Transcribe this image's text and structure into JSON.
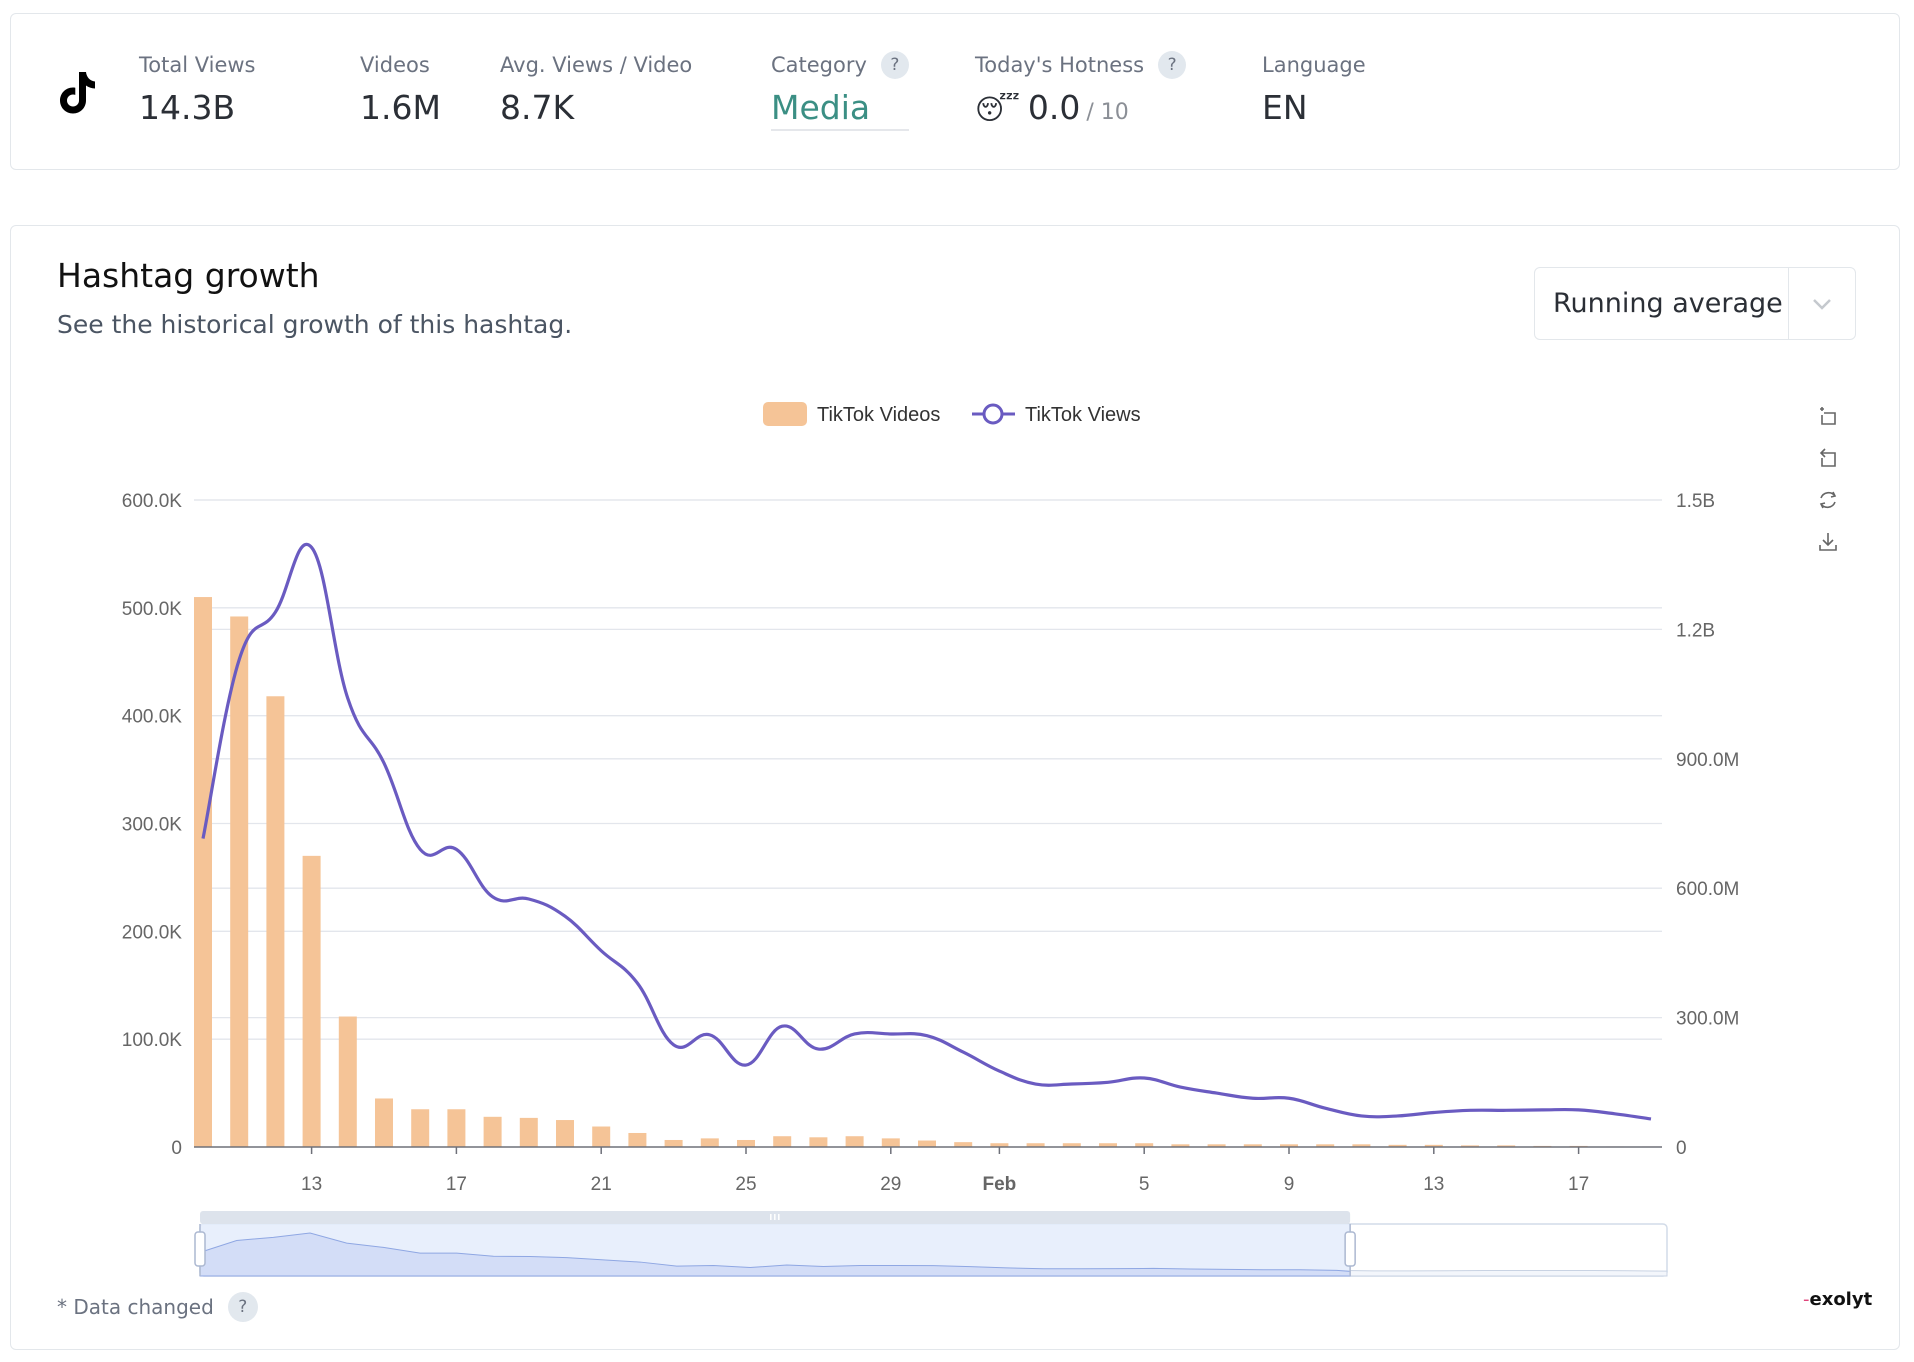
{
  "stats": {
    "platform_icon": "tiktok-logo-icon",
    "items": [
      {
        "label": "Total Views",
        "value": "14.3B"
      },
      {
        "label": "Videos",
        "value": "1.6M"
      },
      {
        "label": "Avg. Views / Video",
        "value": "8.7K"
      },
      {
        "label": "Category",
        "value": "Media",
        "help": "?"
      },
      {
        "label": "Today's Hotness",
        "value": "0.0",
        "suffix": "/ 10",
        "emoji": "😴",
        "help": "?"
      },
      {
        "label": "Language",
        "value": "EN"
      }
    ]
  },
  "chart_card": {
    "title": "Hashtag growth",
    "subtitle": "See the historical growth of this hashtag.",
    "select": {
      "value": "Running average",
      "icon": "chevron-down-icon"
    },
    "toolbox": [
      "area-zoom-icon",
      "zoom-back-icon",
      "restore-icon",
      "save-image-icon"
    ],
    "footer_note": "* Data changed",
    "footer_help": "?",
    "brand": "exolyt"
  },
  "colors": {
    "videos_bar": "#f5c497",
    "views_line": "#6a5bc1",
    "category_accent": "#3b8f84",
    "slider_fill": "#e4ecfb",
    "slider_area": "#d3ddf7"
  },
  "chart_data": {
    "type": "bar+line",
    "legend": [
      "TikTok Videos",
      "TikTok Views"
    ],
    "legend_position": "top-center",
    "grid": true,
    "x": [
      "Jan 10",
      "Jan 11",
      "Jan 12",
      "Jan 13",
      "Jan 14",
      "Jan 15",
      "Jan 16",
      "Jan 17",
      "Jan 18",
      "Jan 19",
      "Jan 20",
      "Jan 21",
      "Jan 22",
      "Jan 23",
      "Jan 24",
      "Jan 25",
      "Jan 26",
      "Jan 27",
      "Jan 28",
      "Jan 29",
      "Jan 30",
      "Jan 31",
      "Feb 1",
      "Feb 2",
      "Feb 3",
      "Feb 4",
      "Feb 5",
      "Feb 6",
      "Feb 7",
      "Feb 8",
      "Feb 9",
      "Feb 10",
      "Feb 11",
      "Feb 12",
      "Feb 13",
      "Feb 14",
      "Feb 15",
      "Feb 16",
      "Feb 17",
      "Feb 18",
      "Feb 19"
    ],
    "x_tick_labels": [
      {
        "index": 3,
        "label": "13"
      },
      {
        "index": 7,
        "label": "17"
      },
      {
        "index": 11,
        "label": "21"
      },
      {
        "index": 15,
        "label": "25"
      },
      {
        "index": 19,
        "label": "29"
      },
      {
        "index": 22,
        "label": "Feb",
        "bold": true
      },
      {
        "index": 26,
        "label": "5"
      },
      {
        "index": 30,
        "label": "9"
      },
      {
        "index": 34,
        "label": "13"
      },
      {
        "index": 38,
        "label": "17"
      }
    ],
    "series": [
      {
        "name": "TikTok Videos",
        "type": "bar",
        "axis": "left",
        "values": [
          510000,
          492000,
          418000,
          270000,
          121000,
          45000,
          35000,
          35000,
          28000,
          27000,
          25000,
          19000,
          13000,
          6500,
          8000,
          6500,
          10000,
          9000,
          10000,
          8000,
          6000,
          4500,
          3500,
          3500,
          3500,
          3500,
          3500,
          2500,
          2500,
          2500,
          2500,
          2500,
          2500,
          2000,
          2000,
          1500,
          1500,
          1000,
          1000,
          500,
          500
        ]
      },
      {
        "name": "TikTok Views",
        "type": "line",
        "axis": "right",
        "smooth": true,
        "values": [
          715000000,
          1130000000,
          1240000000,
          1390000000,
          1040000000,
          890000000,
          690000000,
          690000000,
          580000000,
          575000000,
          535000000,
          455000000,
          380000000,
          237000000,
          260000000,
          190000000,
          280000000,
          227000000,
          262000000,
          262000000,
          258000000,
          220000000,
          176000000,
          146000000,
          146000000,
          150000000,
          160000000,
          139000000,
          125000000,
          113000000,
          113000000,
          90000000,
          72000000,
          72000000,
          80000000,
          85000000,
          85000000,
          86000000,
          86000000,
          77000000,
          65000000
        ]
      }
    ],
    "y_left": {
      "min": 0,
      "max": 600000,
      "ticks": [
        0,
        100000,
        200000,
        300000,
        400000,
        500000,
        600000
      ],
      "tick_labels": [
        "0",
        "100.0K",
        "200.0K",
        "300.0K",
        "400.0K",
        "500.0K",
        "600.0K"
      ]
    },
    "y_right": {
      "min": 0,
      "max": 1500000000,
      "ticks": [
        0,
        300000000,
        600000000,
        900000000,
        1200000000,
        1500000000
      ],
      "tick_labels": [
        "0",
        "300.0M",
        "600.0M",
        "900.0M",
        "1.2B",
        "1.5B"
      ]
    },
    "data_zoom": {
      "start_percent": 0,
      "end_percent": 78.4
    }
  }
}
